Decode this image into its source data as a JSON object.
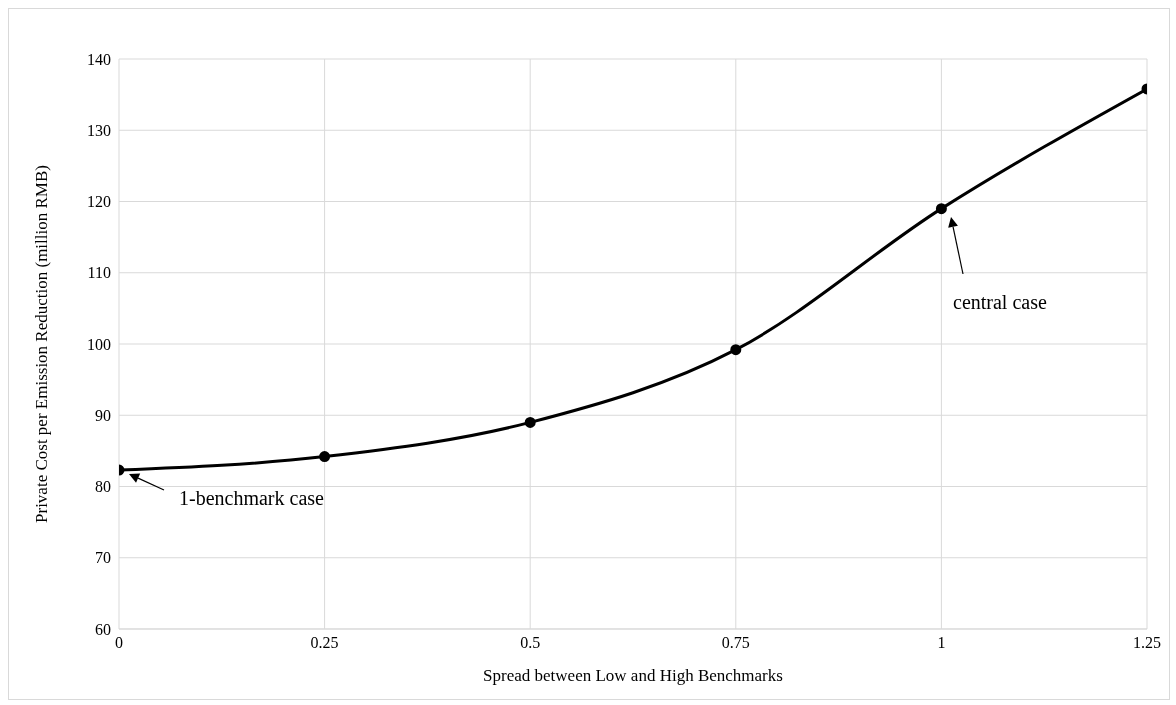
{
  "chart_data": {
    "type": "line",
    "xlabel": "Spread between Low and High Benchmarks",
    "ylabel": "Private Cost per Emission Reduction (million RMB)",
    "x": [
      0,
      0.25,
      0.5,
      0.75,
      1,
      1.25
    ],
    "series": [
      {
        "color": "#000000",
        "values": [
          82.3,
          84.2,
          89,
          99.2,
          119,
          135.8
        ]
      }
    ],
    "xlim": [
      0,
      1.25
    ],
    "xticks": [
      0,
      0.25,
      0.5,
      0.75,
      1,
      1.25
    ],
    "ylim": [
      60,
      140
    ],
    "yticks": [
      60,
      70,
      80,
      90,
      100,
      110,
      120,
      130,
      140
    ],
    "grid": true,
    "marker": "circle",
    "line_style": "solid",
    "annotations": [
      "1-benchmark case",
      "central case"
    ]
  }
}
